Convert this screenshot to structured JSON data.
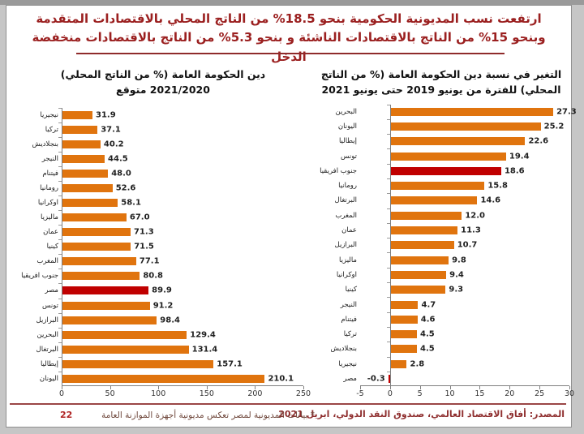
{
  "header": {
    "title": "ارتفعت نسب المديونية الحكومية بنحو 18.5% من الناتج المحلي بالاقتصادات المتقدمة وبنحو 15% من الناتج بالاقتصادات الناشئة و بنحو 5.3% من الناتج بالاقتصادات منخفضة الدخل"
  },
  "footer": {
    "source": "المصدر: أفاق الاقتصاد العالمي، صندوق النقد الدولي، ابريل 2021",
    "footnote": "* بيانات المديونية لمصر تعكس مديونية أجهزة الموازنة العامة",
    "page_number": "22"
  },
  "colors": {
    "bar_orange": "#E0740E",
    "highlight_red": "#C00000",
    "title_red": "#9B2020",
    "source_red": "#8F2F2F",
    "page_number_red": "#B02525",
    "axis_gray": "#808080"
  },
  "chart_data": [
    {
      "type": "bar",
      "orientation": "horizontal",
      "title": "التغير في نسبة دين الحكومة العامة (% من الناتج المحلي) للفترة  من يونيو 2019 حتى يونيو 2021",
      "categories": [
        "البحرين",
        "اليونان",
        "إيطاليا",
        "تونس",
        "جنوب افريقيا",
        "رومانيا",
        "البرتغال",
        "المغرب",
        "عمان",
        "البرازيل",
        "ماليزيا",
        "اوكرانيا",
        "كينيا",
        "النيجر",
        "فيتنام",
        "تركيا",
        "بنجلاديش",
        "نيجيريا",
        "مصر"
      ],
      "values": [
        27.3,
        25.2,
        22.6,
        19.4,
        18.6,
        15.8,
        14.6,
        12.0,
        11.3,
        10.7,
        9.8,
        9.4,
        9.3,
        4.7,
        4.6,
        4.5,
        4.5,
        2.8,
        -0.3
      ],
      "highlight_indices": [
        4,
        18
      ],
      "bar_color": "#E0740E",
      "highlight_color": "#C00000",
      "xlim": [
        -5,
        30
      ],
      "xticks": [
        -5,
        0,
        5,
        10,
        15,
        20,
        25,
        30
      ],
      "grid": false,
      "value_labels": true
    },
    {
      "type": "bar",
      "orientation": "horizontal",
      "title": "دين الحكومة العامة (% من الناتج المحلي) 2021/2020 متوقع",
      "categories": [
        "نيجيريا",
        "تركيا",
        "بنجلاديش",
        "النيجر",
        "فيتنام",
        "رومانيا",
        "اوكرانيا",
        "ماليزيا",
        "عمان",
        "كينيا",
        "المغرب",
        "جنوب افريقيا",
        "مصر",
        "تونس",
        "البرازيل",
        "البحرين",
        "البرتغال",
        "إيطاليا",
        "اليونان"
      ],
      "values": [
        31.9,
        37.1,
        40.2,
        44.5,
        48.0,
        52.6,
        58.1,
        67.0,
        71.3,
        71.5,
        77.1,
        80.8,
        89.9,
        91.2,
        98.4,
        129.4,
        131.4,
        157.1,
        210.1
      ],
      "highlight_indices": [
        12
      ],
      "bar_color": "#E0740E",
      "highlight_color": "#C00000",
      "xlim": [
        0,
        250
      ],
      "xticks": [
        0,
        50,
        100,
        150,
        200,
        250
      ],
      "grid": false,
      "value_labels": true
    }
  ]
}
